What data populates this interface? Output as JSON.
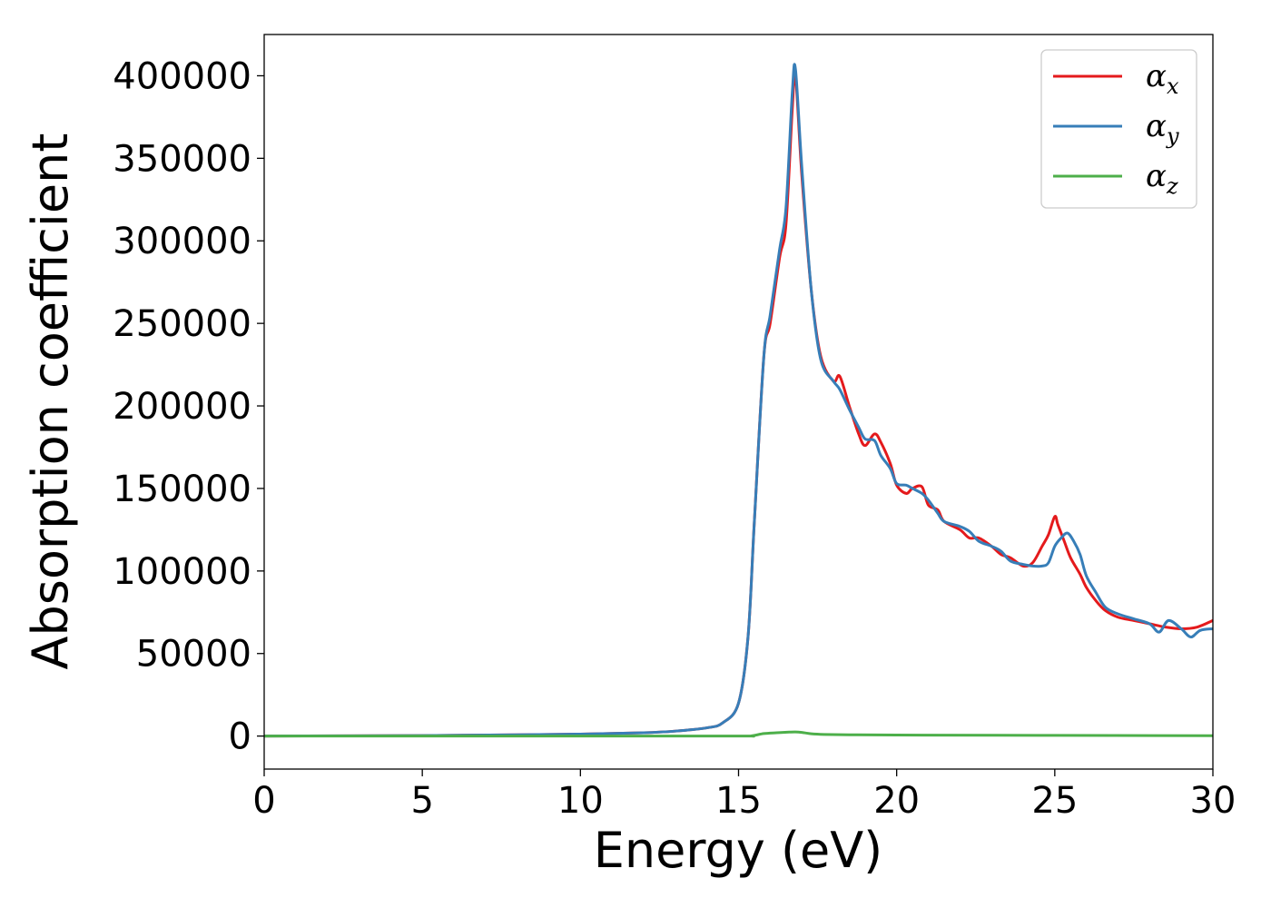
{
  "chart_data": {
    "type": "line",
    "title": "",
    "xlabel": "Energy (eV)",
    "ylabel": "Absorption coefficient",
    "xlim": [
      0,
      30
    ],
    "ylim": [
      -20000,
      425000
    ],
    "xticks": [
      0,
      5,
      10,
      15,
      20,
      25,
      30
    ],
    "xtick_labels": [
      "0",
      "5",
      "10",
      "15",
      "20",
      "25",
      "30"
    ],
    "yticks": [
      0,
      50000,
      100000,
      150000,
      200000,
      250000,
      300000,
      350000,
      400000
    ],
    "ytick_labels": [
      "0",
      "50000",
      "100000",
      "150000",
      "200000",
      "250000",
      "300000",
      "350000",
      "400000"
    ],
    "grid": false,
    "legend_position": "top-right",
    "series": [
      {
        "name": "α",
        "subscript": "x",
        "color": "#e41a1c",
        "x": [
          0,
          5,
          8,
          10,
          12,
          13,
          14,
          14.5,
          15,
          15.3,
          15.5,
          15.8,
          16.0,
          16.3,
          16.5,
          16.7,
          16.8,
          17.0,
          17.3,
          17.6,
          18.0,
          18.2,
          18.5,
          18.8,
          19.0,
          19.3,
          19.5,
          19.8,
          20.0,
          20.3,
          20.5,
          20.8,
          21.0,
          21.3,
          21.5,
          22.0,
          22.3,
          22.6,
          23.0,
          23.3,
          23.6,
          24.0,
          24.3,
          24.6,
          24.8,
          25.0,
          25.1,
          25.3,
          25.5,
          25.8,
          26.0,
          26.3,
          26.6,
          27.0,
          27.5,
          28.0,
          28.5,
          29.0,
          29.5,
          30.0
        ],
        "y": [
          0,
          300,
          800,
          1200,
          2000,
          3000,
          5000,
          8000,
          20000,
          60000,
          130000,
          230000,
          250000,
          290000,
          310000,
          380000,
          400000,
          340000,
          270000,
          230000,
          215000,
          218000,
          200000,
          183000,
          176000,
          183000,
          178000,
          165000,
          152000,
          147000,
          150000,
          151000,
          140000,
          137000,
          130000,
          125000,
          120000,
          120000,
          115000,
          110000,
          108000,
          103000,
          105000,
          115000,
          122000,
          133000,
          128000,
          118000,
          108000,
          98000,
          90000,
          82000,
          76000,
          72000,
          70000,
          68000,
          66000,
          65000,
          66000,
          70000
        ]
      },
      {
        "name": "α",
        "subscript": "y",
        "color": "#377eb8",
        "x": [
          0,
          5,
          8,
          10,
          12,
          13,
          14,
          14.5,
          15,
          15.3,
          15.5,
          15.8,
          16.0,
          16.3,
          16.5,
          16.7,
          16.8,
          17.0,
          17.3,
          17.6,
          18.0,
          18.2,
          18.5,
          18.8,
          19.0,
          19.3,
          19.5,
          19.8,
          20.0,
          20.3,
          20.5,
          20.8,
          21.0,
          21.3,
          21.5,
          22.0,
          22.3,
          22.6,
          23.0,
          23.3,
          23.6,
          24.0,
          24.3,
          24.6,
          24.8,
          25.0,
          25.2,
          25.4,
          25.6,
          25.8,
          26.0,
          26.3,
          26.6,
          27.0,
          27.5,
          28.0,
          28.3,
          28.6,
          29.0,
          29.3,
          29.6,
          30.0
        ],
        "y": [
          0,
          300,
          800,
          1200,
          2000,
          3000,
          5000,
          8000,
          20000,
          60000,
          130000,
          230000,
          255000,
          295000,
          320000,
          390000,
          404000,
          345000,
          270000,
          228000,
          215000,
          210000,
          198000,
          187000,
          180000,
          179000,
          170000,
          162000,
          153000,
          152000,
          150000,
          147000,
          143000,
          135000,
          130000,
          127000,
          124000,
          118000,
          115000,
          112000,
          106000,
          104000,
          103000,
          103000,
          105000,
          115000,
          120000,
          123000,
          118000,
          110000,
          97000,
          87000,
          78000,
          74000,
          71000,
          68000,
          63000,
          70000,
          65000,
          60000,
          64000,
          65000
        ]
      },
      {
        "name": "α",
        "subscript": "z",
        "color": "#4daf4a",
        "x": [
          0,
          5,
          10,
          15,
          15.4,
          15.8,
          16.2,
          16.6,
          16.8,
          17.0,
          17.3,
          17.7,
          18.5,
          20,
          25,
          30
        ],
        "y": [
          0,
          0,
          0,
          0,
          100,
          1500,
          2000,
          2400,
          2500,
          2200,
          1400,
          1000,
          800,
          600,
          400,
          200
        ]
      }
    ]
  }
}
